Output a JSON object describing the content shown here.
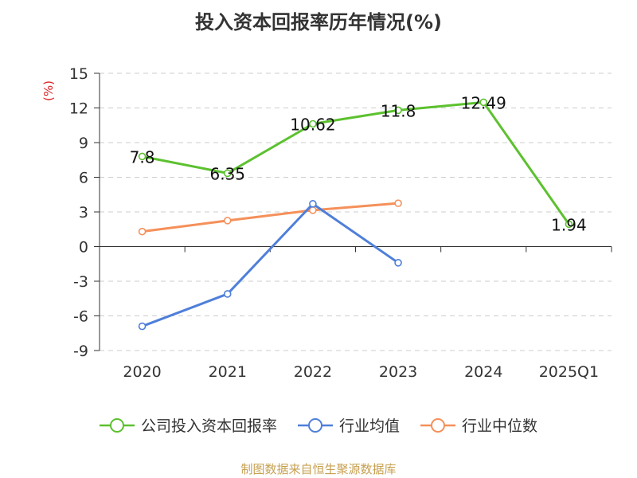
{
  "chart_data": {
    "type": "line",
    "title": "投入资本回报率历年情况(%)",
    "ylabel": "(%)",
    "categories": [
      "2020",
      "2021",
      "2022",
      "2023",
      "2024",
      "2025Q1"
    ],
    "ylim": [
      -9,
      15
    ],
    "yticks": [
      15,
      12,
      9,
      6,
      3,
      0,
      -3,
      -6,
      -9
    ],
    "grid": true,
    "legend_position": "bottom",
    "series": [
      {
        "name": "公司投入资本回报率",
        "color": "#5cc12f",
        "values": [
          7.8,
          6.35,
          10.62,
          11.8,
          12.49,
          1.94
        ],
        "labels": [
          "7.8",
          "6.35",
          "10.62",
          "11.8",
          "12.49",
          "1.94"
        ],
        "show_labels": true
      },
      {
        "name": "行业均值",
        "color": "#4f7fd9",
        "values": [
          -6.9,
          -4.1,
          3.7,
          -1.4,
          null,
          null
        ],
        "show_labels": false
      },
      {
        "name": "行业中位数",
        "color": "#f5905a",
        "values": [
          1.3,
          2.25,
          3.15,
          3.75,
          null,
          null
        ],
        "show_labels": false
      }
    ]
  },
  "source": "制图数据来自恒生聚源数据库"
}
